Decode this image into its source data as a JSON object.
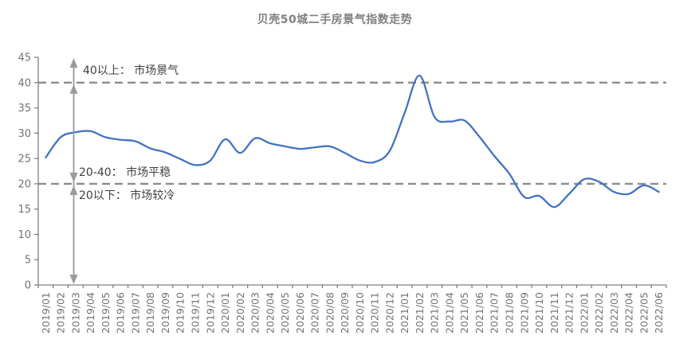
{
  "page": {
    "background": "#ffffff"
  },
  "chart_data": {
    "type": "line",
    "title": "贝壳50城二手房景气指数走势",
    "x": [
      "2019/01",
      "2019/02",
      "2019/03",
      "2019/04",
      "2019/05",
      "2019/06",
      "2019/07",
      "2019/08",
      "2019/09",
      "2019/10",
      "2019/11",
      "2019/12",
      "2020/01",
      "2020/02",
      "2020/03",
      "2020/04",
      "2020/05",
      "2020/06",
      "2020/07",
      "2020/08",
      "2020/09",
      "2020/10",
      "2020/11",
      "2020/12",
      "2021/01",
      "2021/02",
      "2021/03",
      "2021/04",
      "2021/05",
      "2021/06",
      "2021/07",
      "2021/08",
      "2021/09",
      "2021/10",
      "2021/11",
      "2021/12",
      "2022/01",
      "2022/02",
      "2022/03",
      "2022/04",
      "2022/05",
      "2022/06"
    ],
    "series": [
      {
        "name": "贝壳50城二手房景气指数",
        "values": [
          25.2,
          29.2,
          30.2,
          30.4,
          29.2,
          28.7,
          28.4,
          27.0,
          26.2,
          24.9,
          23.7,
          24.6,
          28.8,
          26.1,
          29.0,
          28.0,
          27.4,
          26.9,
          27.2,
          27.4,
          26.1,
          24.6,
          24.3,
          26.5,
          34.0,
          41.4,
          33.2,
          32.3,
          32.5,
          29.3,
          25.5,
          22.0,
          17.4,
          17.6,
          15.4,
          18.0,
          20.9,
          20.4,
          18.4,
          18.0,
          19.7,
          18.4
        ]
      }
    ],
    "ylim": [
      0,
      45
    ],
    "yticks": [
      0,
      5,
      10,
      15,
      20,
      25,
      30,
      35,
      40,
      45
    ],
    "grid": false,
    "legend": "none",
    "reference_lines": [
      {
        "value": 40,
        "style": "dashed"
      },
      {
        "value": 20,
        "style": "dashed"
      }
    ],
    "zones": [
      {
        "range": "40以上",
        "label": "40以上： 市场景气"
      },
      {
        "range": "20-40",
        "label": "20-40： 市场平稳"
      },
      {
        "range": "20以下",
        "label": "20以下： 市场较冷"
      }
    ],
    "colors": {
      "line": "#4472C4",
      "dashed": "#8C8C8C",
      "arrow": "#9A9A9A",
      "axis": "#808080",
      "tick_label": "#737373",
      "title": "#808080",
      "annotation": "#3F3F3F"
    }
  }
}
